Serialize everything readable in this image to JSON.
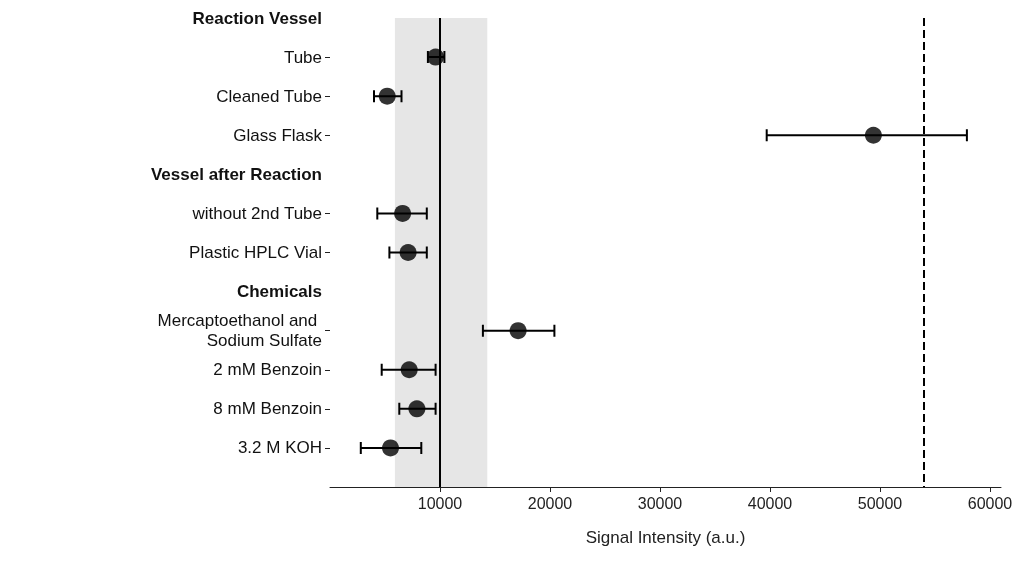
{
  "chart_data": {
    "type": "scatter",
    "orientation": "horizontal",
    "xlabel": "Signal Intensity (a.u.)",
    "categories": [
      "Reaction Vessel",
      "Tube",
      "Cleaned Tube",
      "Glass Flask",
      "Vessel after Reaction",
      "without 2nd Tube",
      "Plastic HPLC Vial",
      "Chemicals",
      "Mercaptoethanol and Sodium Sulfate",
      "2 mM Benzoin",
      "8 mM Benzoin",
      "3.2 M KOH",
      null
    ],
    "values": [
      null,
      9600,
      5200,
      49400,
      null,
      6600,
      7100,
      null,
      17100,
      7200,
      7900,
      5500,
      null
    ],
    "errors": [
      null,
      [
        8900,
        10400
      ],
      [
        4000,
        6500
      ],
      [
        39700,
        57900
      ],
      null,
      [
        4300,
        8800
      ],
      [
        5400,
        8800
      ],
      null,
      [
        13900,
        20400
      ],
      [
        4700,
        9600
      ],
      [
        6300,
        9600
      ],
      [
        2800,
        8300
      ],
      null
    ],
    "color": "#000000",
    "marker": "circle",
    "xlim": [
      0,
      61000
    ],
    "xticks": [
      10000,
      20000,
      30000,
      40000,
      50000,
      60000
    ],
    "grid": false,
    "ref_lines": [
      {
        "axis": "x",
        "value": 10000,
        "line_style": "solid",
        "color": "#000000"
      },
      {
        "axis": "x",
        "value": 54000,
        "line_style": "dashed",
        "color": "#000000"
      }
    ],
    "bands": [
      {
        "axis": "x",
        "from": 5900,
        "to": 14300,
        "color": "#e6e6e6"
      }
    ]
  }
}
